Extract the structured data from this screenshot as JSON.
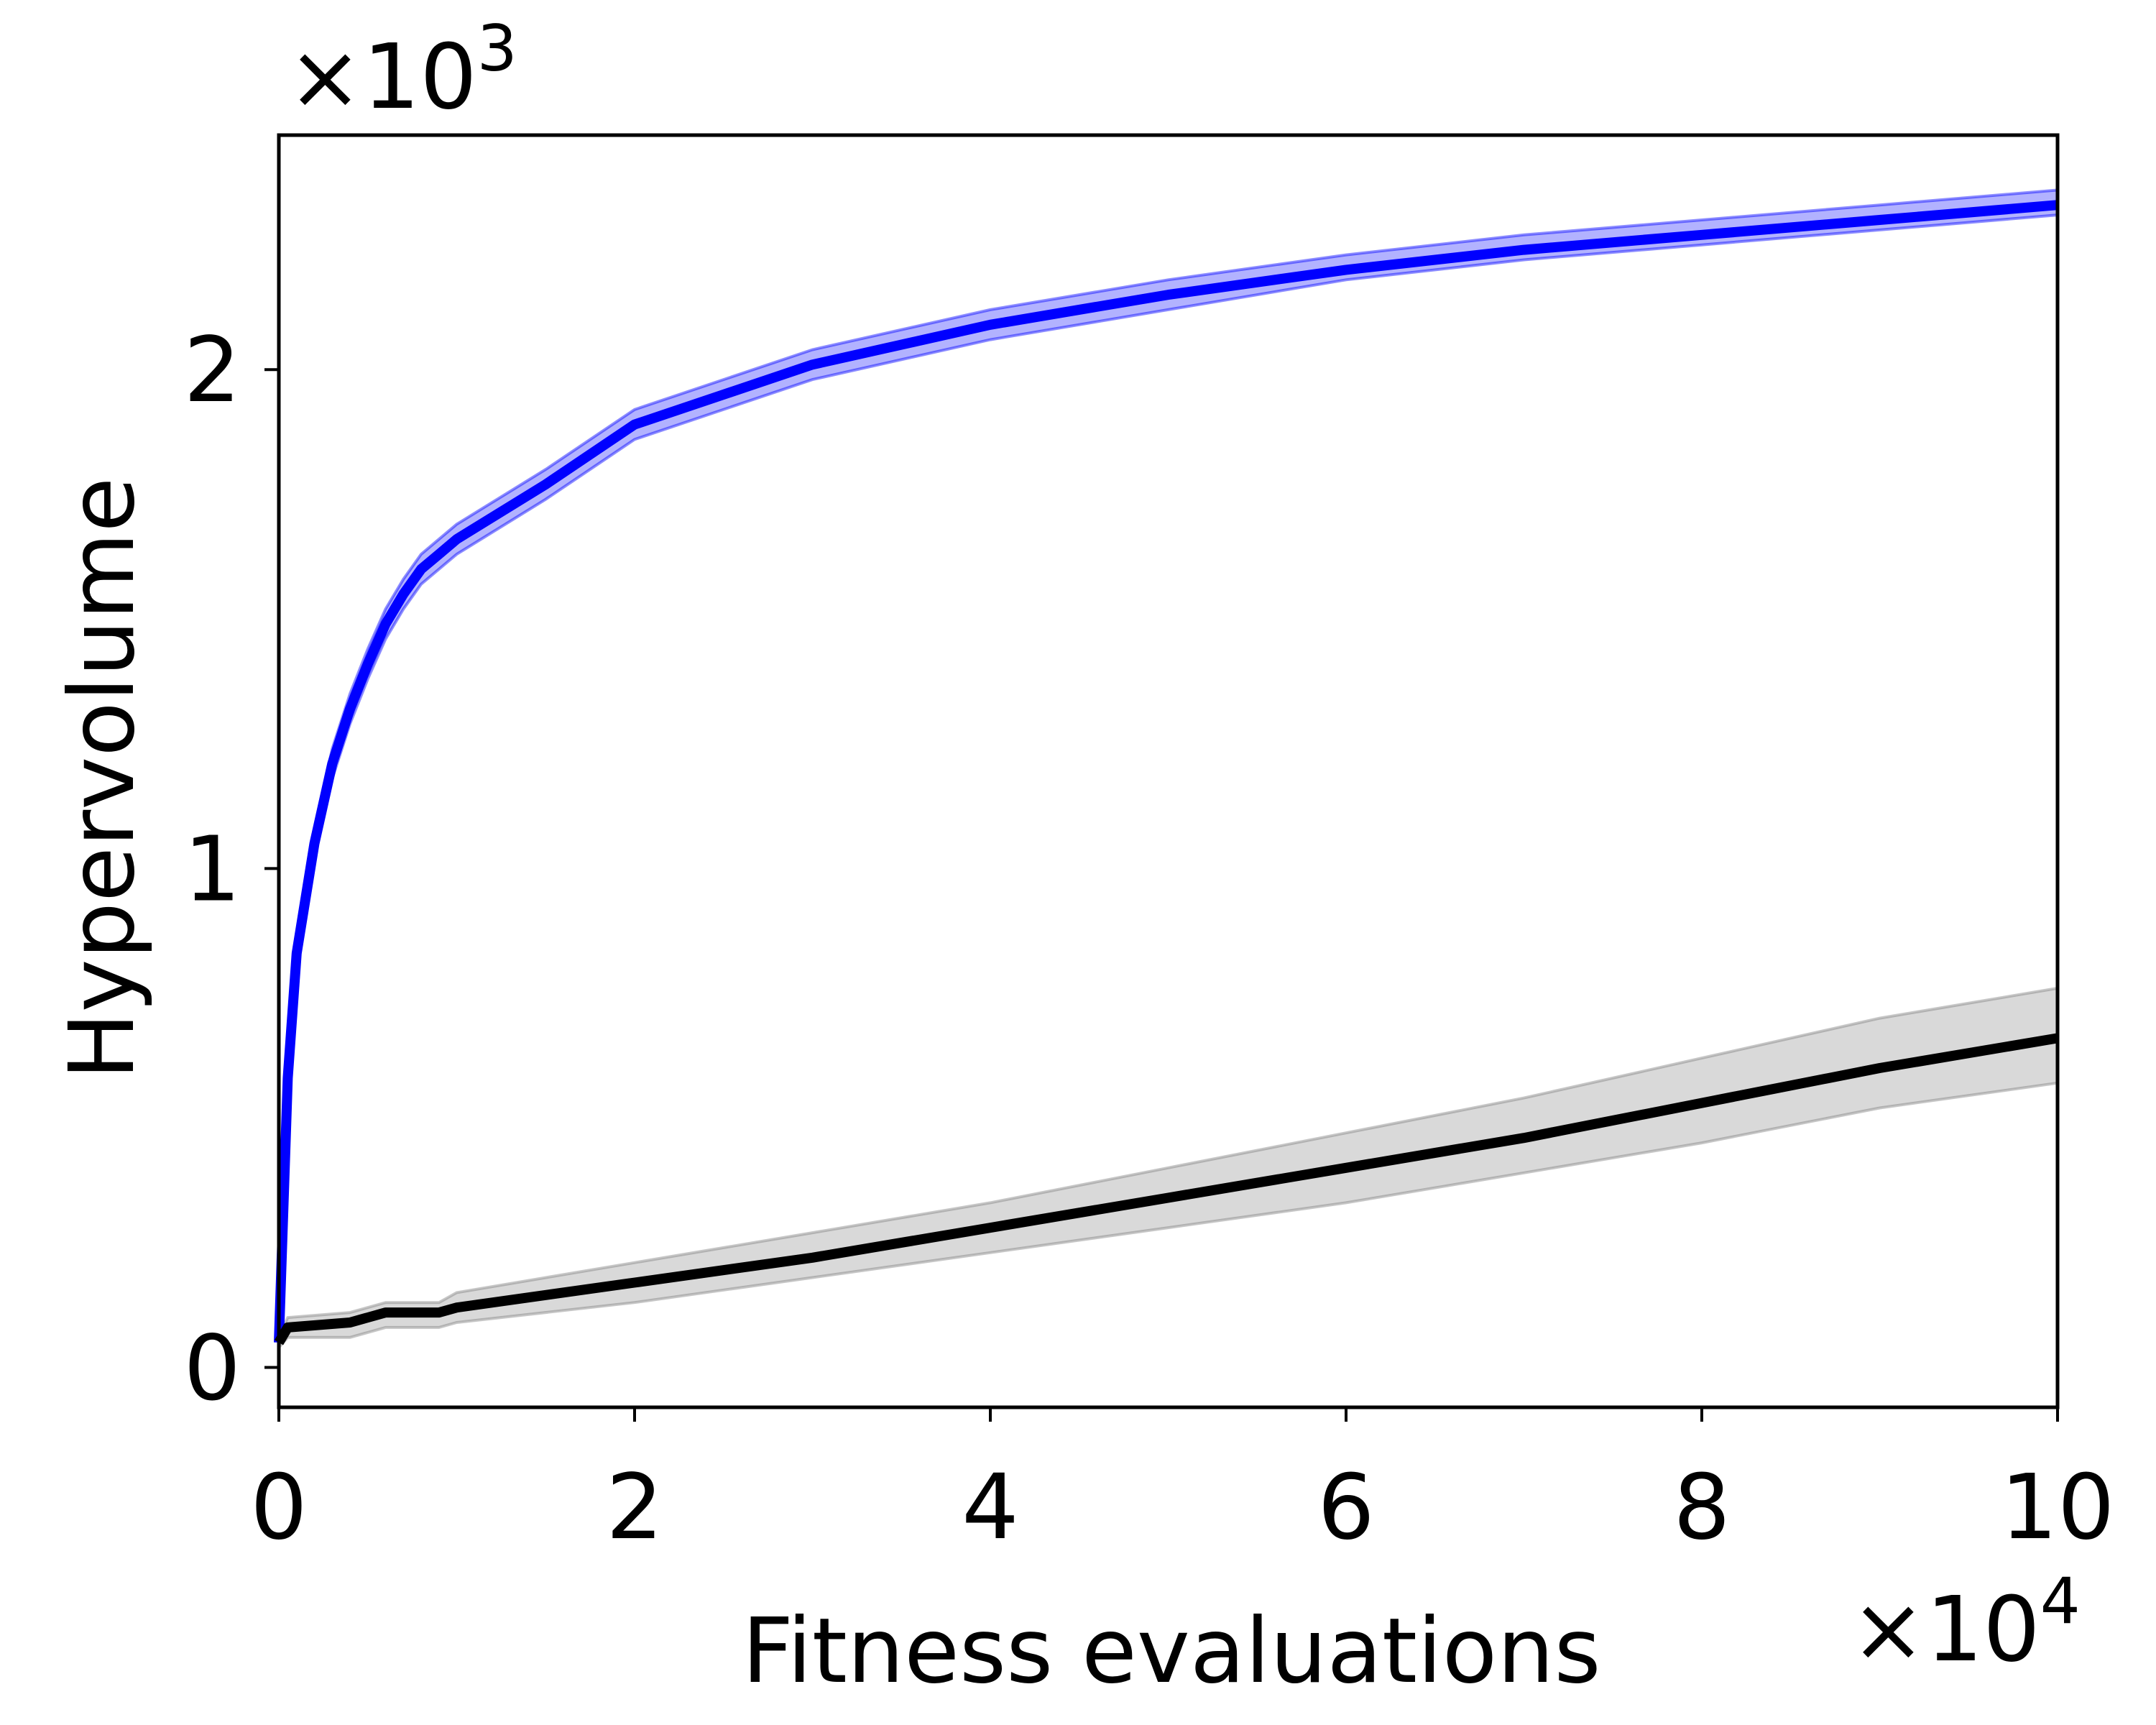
{
  "chart_data": {
    "type": "line",
    "title": "",
    "xlabel": "Fitness evaluations",
    "ylabel": "Hypervolume",
    "x_multiplier": "×10",
    "x_exponent": "4",
    "y_multiplier": "×10",
    "y_exponent": "3",
    "xlim": [
      0,
      10
    ],
    "ylim": [
      -0.08,
      2.47
    ],
    "x_ticks": [
      0,
      2,
      4,
      6,
      8,
      10
    ],
    "x_tick_labels": [
      "0",
      "2",
      "4",
      "6",
      "8",
      "10"
    ],
    "y_ticks": [
      0,
      1,
      2
    ],
    "y_tick_labels": [
      "0",
      "1",
      "2"
    ],
    "grid": false,
    "legend": "none",
    "series": [
      {
        "color": "#0000ff",
        "band_color": "#0000ff",
        "x": [
          0,
          0.05,
          0.1,
          0.2,
          0.3,
          0.4,
          0.5,
          0.6,
          0.7,
          0.8,
          0.9,
          1.0,
          1.5,
          2,
          3,
          4,
          5,
          6,
          7,
          8,
          9,
          10
        ],
        "y": [
          0.05,
          0.58,
          0.83,
          1.05,
          1.21,
          1.32,
          1.41,
          1.49,
          1.55,
          1.6,
          1.63,
          1.66,
          1.77,
          1.89,
          2.01,
          2.09,
          2.15,
          2.2,
          2.24,
          2.27,
          2.3,
          2.33
        ],
        "lower": [
          0.04,
          0.56,
          0.8,
          1.02,
          1.18,
          1.29,
          1.38,
          1.46,
          1.52,
          1.57,
          1.6,
          1.63,
          1.74,
          1.86,
          1.98,
          2.06,
          2.12,
          2.18,
          2.22,
          2.25,
          2.28,
          2.31
        ],
        "upper": [
          0.06,
          0.6,
          0.86,
          1.08,
          1.24,
          1.35,
          1.44,
          1.52,
          1.58,
          1.63,
          1.66,
          1.69,
          1.8,
          1.92,
          2.04,
          2.12,
          2.18,
          2.23,
          2.27,
          2.3,
          2.33,
          2.36
        ]
      },
      {
        "color": "#000000",
        "band_color": "#808080",
        "x": [
          0,
          0.05,
          0.4,
          0.6,
          0.9,
          1.0,
          2,
          3,
          4,
          5,
          6,
          7,
          8,
          9,
          10
        ],
        "y": [
          0.05,
          0.08,
          0.09,
          0.11,
          0.11,
          0.12,
          0.17,
          0.22,
          0.28,
          0.34,
          0.4,
          0.46,
          0.53,
          0.6,
          0.66
        ],
        "lower": [
          0.04,
          0.06,
          0.06,
          0.08,
          0.08,
          0.09,
          0.13,
          0.18,
          0.23,
          0.28,
          0.33,
          0.39,
          0.45,
          0.52,
          0.57
        ],
        "upper": [
          0.06,
          0.1,
          0.11,
          0.13,
          0.13,
          0.15,
          0.21,
          0.27,
          0.33,
          0.4,
          0.47,
          0.54,
          0.62,
          0.7,
          0.76
        ]
      }
    ]
  }
}
